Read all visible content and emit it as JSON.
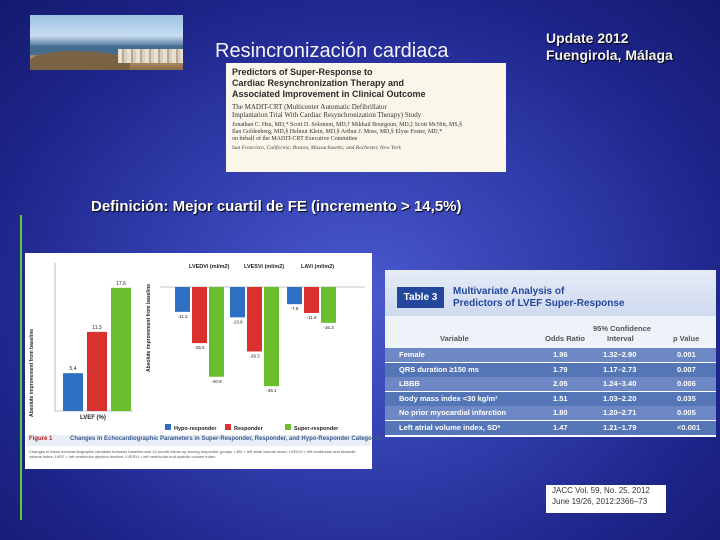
{
  "slide": {
    "title": "Resincronización cardiaca",
    "update_line1": "Update 2012",
    "update_line2": "Fuengirola, Málaga",
    "definition": "Definición: Mejor cuartil de FE (incremento > 14,5%)"
  },
  "paper": {
    "title_l1": "Predictors of Super-Response to",
    "title_l2": "Cardiac Resynchronization Therapy and",
    "title_l3": "Associated Improvement in Clinical Outcome",
    "subtitle_l1": "The MADIT-CRT (Multicenter Automatic Defibrillator",
    "subtitle_l2": "Implantation Trial With Cardiac Resynchronization Therapy) Study",
    "authors_l1": "Jonathan C. Hsu, MD,* Scott D. Solomon, MD,† Mikhail Bourgoun, MD,‡ Scott McNitt, MS,§",
    "authors_l2": "Ilan Goldenberg, MD,§ Helmut Klein, MD,§ Arthur J. Moss, MD,§ Elyse Foster, MD,*",
    "authors_l3": "on behalf of the MADIT-CRT Executive Committee",
    "locations": "San Francisco, California; Boston, Massachusetts; and Rochester, New York"
  },
  "figure": {
    "y_axis_left": "Absolute improvement from baseline",
    "y_axis_right": "Absolute improvement from baseline",
    "lvef_label": "LVEF (%)",
    "panel_labels": [
      "LVEDVi (ml/m2)",
      "LVESVi (ml/m2)",
      "LAVi (ml/m2)"
    ],
    "legend": [
      "Hypo-responder",
      "Responder",
      "Super-responder"
    ],
    "caption_number": "Figure 1",
    "caption_title": "Changes in Echocardiographic Parameters in Super-Responder, Responder, and Hypo-Responder Categories",
    "caption_text": "Changes in these echocardiographic variables between baseline and 12-month follow-up among responder groups. LAVi = left atrial volume index; LVEDVi = left ventricular end-diastolic volume index; LVEF = left ventricular ejection fraction; LVESVi = left ventricular end-systolic volume index."
  },
  "chart_data": {
    "type": "bar",
    "series_names": [
      "Hypo-responder",
      "Responder",
      "Super-responder"
    ],
    "colors": [
      "#2f6fc4",
      "#d9322e",
      "#6bbf2f"
    ],
    "panels": [
      {
        "label": "LVEF (%)",
        "values": [
          5.4,
          11.3,
          17.6
        ]
      },
      {
        "label": "LVEDVi (ml/m2)",
        "values": [
          -11.3,
          -25.5,
          -40.8
        ]
      },
      {
        "label": "LVESVi (ml/m2)",
        "values": [
          -13.8,
          -29.3,
          -45.1
        ]
      },
      {
        "label": "LAVi (ml/m2)",
        "values": [
          -7.8,
          -11.8,
          -16.3
        ]
      }
    ]
  },
  "table": {
    "tag": "Table 3",
    "title_l1": "Multivariate Analysis of",
    "title_l2": "Predictors of LVEF Super-Response",
    "col_variable": "Variable",
    "col_or": "Odds Ratio",
    "col_ci_l1": "95% Confidence",
    "col_ci_l2": "Interval",
    "col_p": "p Value",
    "rows": [
      {
        "variable": "Female",
        "or": "1.96",
        "ci": "1.32–2.90",
        "p": "0.001"
      },
      {
        "variable": "QRS duration ≥150 ms",
        "or": "1.79",
        "ci": "1.17–2.73",
        "p": "0.007"
      },
      {
        "variable": "LBBB",
        "or": "2.05",
        "ci": "1.24–3.40",
        "p": "0.006"
      },
      {
        "variable": "Body mass index <30 kg/m²",
        "or": "1.51",
        "ci": "1.03–2.20",
        "p": "0.035"
      },
      {
        "variable": "No prior myocardial infarction",
        "or": "1.80",
        "ci": "1.20–2.71",
        "p": "0.005"
      },
      {
        "variable": "Left atrial volume index, SD*",
        "or": "1.47",
        "ci": "1.21–1.79",
        "p": "<0.001"
      }
    ]
  },
  "citation": {
    "line1": "JACC Vol. 59, No. 25, 2012",
    "line2": "June 19/26, 2012:2366–73"
  }
}
